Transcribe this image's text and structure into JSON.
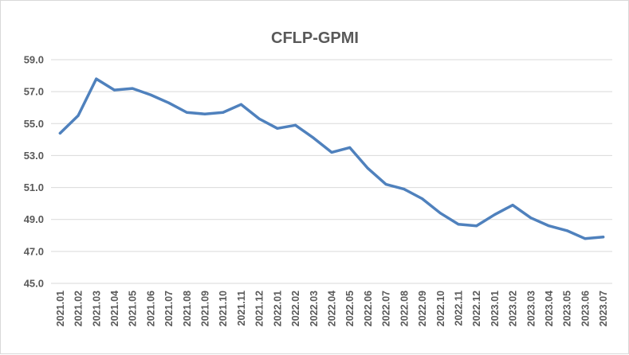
{
  "chart_data": {
    "type": "line",
    "title": "CFLP-GPMI",
    "xlabel": "",
    "ylabel": "",
    "ylim": [
      45.0,
      59.0
    ],
    "yticks": [
      "45.0",
      "47.0",
      "49.0",
      "51.0",
      "53.0",
      "55.0",
      "57.0",
      "59.0"
    ],
    "categories": [
      "2021.01",
      "2021.02",
      "2021.03",
      "2021.04",
      "2021.05",
      "2021.06",
      "2021.07",
      "2021.08",
      "2021.09",
      "2021.10",
      "2021.11",
      "2021.12",
      "2022.01",
      "2022.02",
      "2022.03",
      "2022.04",
      "2022.05",
      "2022.06",
      "2022.07",
      "2022.08",
      "2022.09",
      "2022.10",
      "2022.11",
      "2022.12",
      "2023.01",
      "2023.02",
      "2023.03",
      "2023.04",
      "2023.05",
      "2023.06",
      "2023.07"
    ],
    "series": [
      {
        "color": "#4f81bd",
        "values": [
          54.4,
          55.5,
          57.8,
          57.1,
          57.2,
          56.8,
          56.3,
          55.7,
          55.6,
          55.7,
          56.2,
          55.3,
          54.7,
          54.9,
          54.1,
          53.2,
          53.5,
          52.2,
          51.2,
          50.9,
          50.3,
          49.4,
          48.7,
          48.6,
          49.3,
          49.9,
          49.1,
          48.6,
          48.3,
          47.8,
          47.9
        ]
      }
    ],
    "grid": true,
    "legend": "none"
  }
}
